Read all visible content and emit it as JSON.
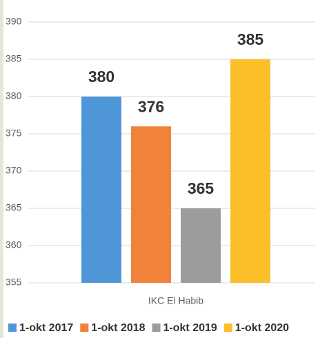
{
  "chart_data": {
    "type": "bar",
    "categories": [
      "IKC El Habib"
    ],
    "series": [
      {
        "name": "1-okt 2017",
        "color": "#4f96d8",
        "values": [
          380
        ]
      },
      {
        "name": "1-okt 2018",
        "color": "#f0823a",
        "values": [
          376
        ]
      },
      {
        "name": "1-okt 2019",
        "color": "#9c9c9c",
        "values": [
          365
        ]
      },
      {
        "name": "1-okt 2020",
        "color": "#fcbf2a",
        "values": [
          385
        ]
      }
    ],
    "ylim": [
      355,
      390
    ],
    "yticks": [
      355,
      360,
      365,
      370,
      375,
      380,
      385,
      390
    ],
    "grid": true,
    "data_labels": true,
    "legend": "bottom"
  }
}
